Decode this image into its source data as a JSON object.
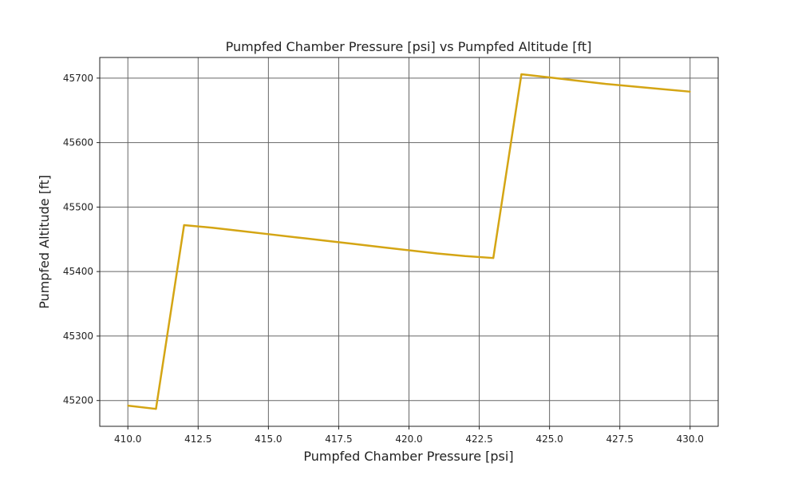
{
  "chart_data": {
    "type": "line",
    "title": "Pumpfed Chamber Pressure [psi] vs Pumpfed Altitude [ft]",
    "xlabel": "Pumpfed Chamber Pressure [psi]",
    "ylabel": "Pumpfed Altitude [ft]",
    "xlim": [
      409,
      431
    ],
    "ylim": [
      45160,
      45732
    ],
    "xticks": [
      410.0,
      412.5,
      415.0,
      417.5,
      420.0,
      422.5,
      425.0,
      427.5,
      430.0
    ],
    "xtick_labels": [
      "410.0",
      "412.5",
      "415.0",
      "417.5",
      "420.0",
      "422.5",
      "425.0",
      "427.5",
      "430.0"
    ],
    "yticks": [
      45200,
      45300,
      45400,
      45500,
      45600,
      45700
    ],
    "ytick_labels": [
      "45200",
      "45300",
      "45400",
      "45500",
      "45600",
      "45700"
    ],
    "grid": true,
    "series": [
      {
        "color": "#d4a514",
        "x": [
          410,
          411,
          412,
          413,
          414,
          415,
          416,
          417,
          418,
          419,
          420,
          421,
          422,
          423,
          424,
          425,
          426,
          427,
          428,
          429,
          430
        ],
        "y": [
          45192,
          45187,
          45472,
          45468,
          45463,
          45458,
          45453,
          45448,
          45443,
          45438,
          45433,
          45428,
          45424,
          45421,
          45706,
          45701,
          45696,
          45691,
          45687,
          45683,
          45679
        ]
      }
    ]
  }
}
